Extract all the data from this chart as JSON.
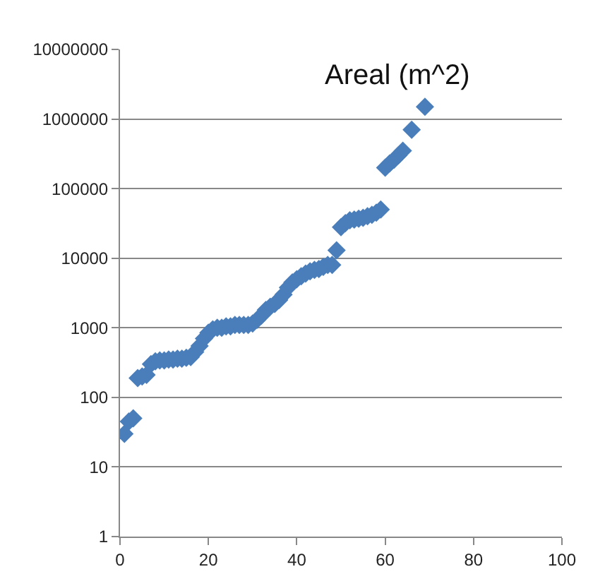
{
  "chart_data": {
    "type": "scatter",
    "title": "Areal (m^2)",
    "marker": "diamond",
    "log": "y",
    "grid": "y",
    "xlim": [
      0,
      100
    ],
    "xticks": [
      0,
      20,
      40,
      60,
      80,
      100
    ],
    "ylim": [
      1,
      10000000
    ],
    "yticks": [
      1,
      10,
      100,
      1000,
      10000,
      100000,
      1000000,
      10000000
    ],
    "series": [
      {
        "color": "#4a7ebb",
        "x": [
          1,
          2,
          3,
          4,
          5,
          6,
          7,
          8,
          9,
          10,
          11,
          12,
          13,
          14,
          15,
          16,
          17,
          18,
          19,
          20,
          21,
          22,
          23,
          24,
          25,
          26,
          27,
          28,
          29,
          30,
          31,
          32,
          33,
          34,
          35,
          36,
          37,
          38,
          39,
          40,
          41,
          42,
          43,
          44,
          45,
          46,
          47,
          48,
          49,
          50,
          51,
          52,
          53,
          54,
          55,
          56,
          57,
          58,
          59,
          60,
          61,
          62,
          63,
          64,
          66,
          69
        ],
        "values": [
          30,
          45,
          50,
          190,
          200,
          210,
          300,
          330,
          340,
          340,
          350,
          350,
          360,
          360,
          370,
          380,
          450,
          550,
          700,
          850,
          950,
          1000,
          1000,
          1050,
          1050,
          1100,
          1100,
          1100,
          1100,
          1150,
          1300,
          1500,
          1800,
          2000,
          2200,
          2500,
          3000,
          3800,
          4500,
          5000,
          5500,
          6000,
          6500,
          6800,
          7000,
          7500,
          8000,
          8000,
          13000,
          28000,
          32000,
          35000,
          36000,
          37000,
          38000,
          40000,
          42000,
          45000,
          50000,
          200000,
          230000,
          260000,
          300000,
          350000,
          700000,
          1500000
        ]
      }
    ]
  }
}
